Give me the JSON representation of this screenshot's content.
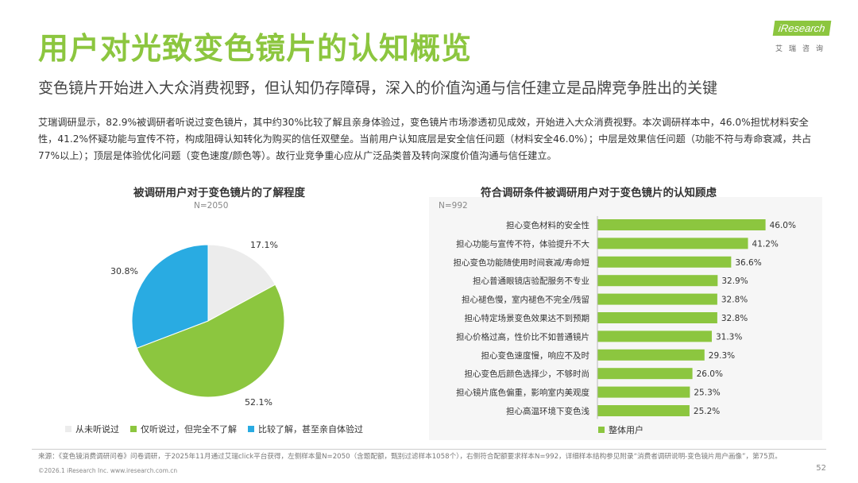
{
  "header": {
    "title": "用户对光致变色镜片的认知概览",
    "subtitle": "变色镜片开始进入大众消费视野，但认知仍存障碍，深入的价值沟通与信任建立是品牌竞争胜出的关键",
    "intro": "艾瑞调研显示，82.9%被调研者听说过变色镜片，其中约30%比较了解且亲身体验过，变色镜片市场渗透初见成效，开始进入大众消费视野。本次调研样本中，46.0%担忧材料安全性，41.2%怀疑功能与宣传不符，构成阻碍认知转化为购买的信任双壁垒。当前用户认知底层是安全信任问题（材料安全46.0%）；中层是效果信任问题（功能不符与寿命衰减，共占77%以上）；顶层是体验优化问题（变色速度/颜色等）。故行业竞争重心应从广泛品类普及转向深度价值沟通与信任建立。"
  },
  "logo": {
    "brand": "iResearch",
    "sub": "艾瑞咨询"
  },
  "colors": {
    "green": "#8cc63f",
    "blue": "#29abe2",
    "gray": "#ececec"
  },
  "chart_data": [
    {
      "type": "pie",
      "title": "被调研用户对于变色镜片的了解程度",
      "sample": "N=2050",
      "slices": [
        {
          "name": "从未听说过",
          "value": 17.1,
          "label": "17.1%",
          "color": "#ececec"
        },
        {
          "name": "仅听说过，但完全不了解",
          "value": 52.1,
          "label": "52.1%",
          "color": "#8cc63f"
        },
        {
          "name": "比较了解，甚至亲自体验过",
          "value": 30.8,
          "label": "30.8%",
          "color": "#29abe2"
        }
      ]
    },
    {
      "type": "bar",
      "orientation": "horizontal",
      "title": "符合调研条件被调研用户对于变色镜片的认知顾虑",
      "sample": "N=992",
      "series_name": "整体用户",
      "xlim": [
        0,
        50
      ],
      "categories": [
        "担心变色材料的安全性",
        "担心功能与宣传不符，体验提升不大",
        "担心变色功能随使用时间衰减/寿命短",
        "担心普通眼镜店验配服务不专业",
        "担心褪色慢，室内褪色不完全/残留",
        "担心特定场景变色效果达不到预期",
        "担心价格过高，性价比不如普通镜片",
        "担心变色速度慢，响应不及时",
        "担心变色后颜色选择少，不够时尚",
        "担心镜片底色偏重，影响室内美观度",
        "担心高温环境下变色浅"
      ],
      "values": [
        46.0,
        41.2,
        36.6,
        32.9,
        32.8,
        32.8,
        31.3,
        29.3,
        26.0,
        25.3,
        25.2
      ],
      "labels": [
        "46.0%",
        "41.2%",
        "36.6%",
        "32.9%",
        "32.8%",
        "32.8%",
        "31.3%",
        "29.3%",
        "26.0%",
        "25.3%",
        "25.2%"
      ]
    }
  ],
  "footer": {
    "source": "来源：《变色镜消费调研问卷》问卷调研，于2025年11月通过艾瑞click平台获得，左侧样本量N=2050（含题配额，甄别过滤样本1058个），右侧符合配额要求样本N=992，详细样本结构参见附录“消费者调研说明-变色镜片用户画像”，第75页。",
    "copyright": "©2026.1 iResearch Inc.   www.iresearch.com.cn",
    "page": "52"
  }
}
